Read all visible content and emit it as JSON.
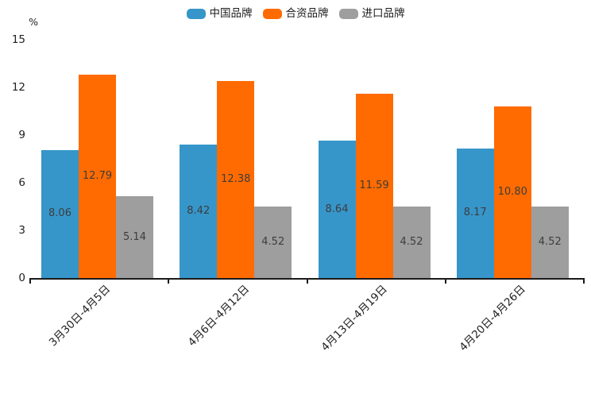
{
  "chart_data": {
    "type": "bar",
    "title": "",
    "ylabel": "%",
    "xlabel": "",
    "ylim": [
      0,
      15
    ],
    "yticks": [
      0,
      3,
      6,
      9,
      12,
      15
    ],
    "grid": false,
    "legend_position": "top",
    "value_label_decimals": 2,
    "categories": [
      "3月30日-4月5日",
      "4月6日-4月12日",
      "4月13日-4月19日",
      "4月20日-4月26日"
    ],
    "series": [
      {
        "name": "中国品牌",
        "color": "#3696ca",
        "values": [
          8.06,
          8.42,
          8.64,
          8.17
        ]
      },
      {
        "name": "合资品牌",
        "color": "#ff6b00",
        "values": [
          12.79,
          12.38,
          11.59,
          10.8
        ]
      },
      {
        "name": "进口品牌",
        "color": "#9e9e9e",
        "values": [
          5.14,
          4.52,
          4.52,
          4.52
        ]
      }
    ]
  },
  "colors": {
    "background": "#ffffff",
    "axis": "#1a1a1a",
    "tick_label": "#1f1f1f",
    "value_label": "#3d3d3d"
  }
}
